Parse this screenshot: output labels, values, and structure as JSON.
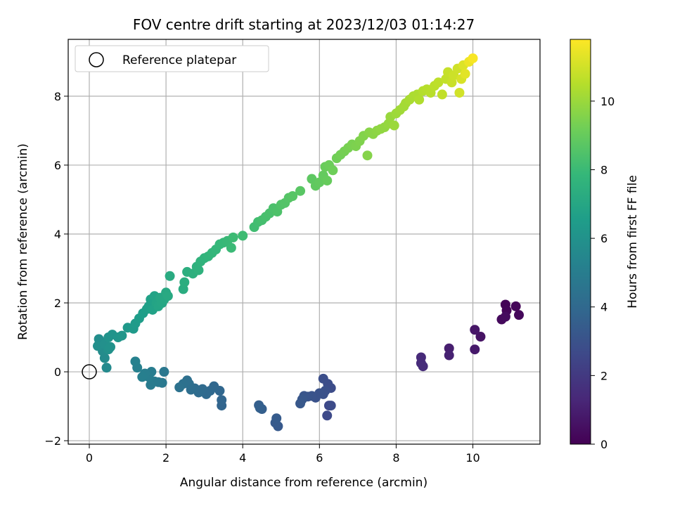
{
  "chart_data": {
    "type": "scatter",
    "title": "FOV centre drift starting at 2023/12/03 01:14:27",
    "xlabel": "Angular distance from reference (arcmin)",
    "ylabel": "Rotation from reference (arcmin)",
    "xlim": [
      -0.55,
      11.75
    ],
    "ylim": [
      -2.1,
      9.65
    ],
    "xticks": [
      0,
      2,
      4,
      6,
      8,
      10
    ],
    "yticks": [
      -2,
      0,
      2,
      4,
      6,
      8
    ],
    "grid": true,
    "legend": {
      "position": "top-left",
      "entries": [
        "Reference platepar"
      ]
    },
    "reference_point": {
      "x": 0,
      "y": 0,
      "label": "Reference platepar"
    },
    "colorbar": {
      "label": "Hours from first FF file",
      "colormap": "viridis",
      "range": [
        0,
        11.8
      ],
      "ticks": [
        0,
        2,
        4,
        6,
        8,
        10
      ]
    },
    "colormap_stops": [
      "#440154",
      "#482878",
      "#3e4989",
      "#31688e",
      "#26828e",
      "#1f9e89",
      "#35b779",
      "#6ece58",
      "#b5de2b",
      "#fde725"
    ],
    "points": [
      [
        10.85,
        1.95,
        0.1
      ],
      [
        10.88,
        1.78,
        0.15
      ],
      [
        11.2,
        1.65,
        0.25
      ],
      [
        11.12,
        1.9,
        0.2
      ],
      [
        10.75,
        1.52,
        0.3
      ],
      [
        10.85,
        1.6,
        0.35
      ],
      [
        10.2,
        1.02,
        0.6
      ],
      [
        10.05,
        1.22,
        0.7
      ],
      [
        10.05,
        0.65,
        0.8
      ],
      [
        9.38,
        0.68,
        1.0
      ],
      [
        9.38,
        0.48,
        1.1
      ],
      [
        8.65,
        0.42,
        1.4
      ],
      [
        8.65,
        0.25,
        1.45
      ],
      [
        8.7,
        0.16,
        1.5
      ],
      [
        6.25,
        -0.98,
        2.6
      ],
      [
        6.2,
        -1.27,
        2.65
      ],
      [
        6.3,
        -0.98,
        2.7
      ],
      [
        6.3,
        -0.47,
        2.75
      ],
      [
        6.22,
        -0.35,
        2.8
      ],
      [
        6.1,
        -0.2,
        2.85
      ],
      [
        6.15,
        -0.55,
        2.9
      ],
      [
        6.1,
        -0.65,
        2.95
      ],
      [
        6.0,
        -0.62,
        3.0
      ],
      [
        5.9,
        -0.75,
        3.0
      ],
      [
        5.8,
        -0.7,
        3.05
      ],
      [
        5.7,
        -0.72,
        3.1
      ],
      [
        5.6,
        -0.7,
        3.15
      ],
      [
        5.55,
        -0.8,
        3.2
      ],
      [
        5.5,
        -0.92,
        3.25
      ],
      [
        4.92,
        -1.58,
        3.3
      ],
      [
        4.85,
        -1.48,
        3.35
      ],
      [
        4.88,
        -1.35,
        3.4
      ],
      [
        4.5,
        -1.08,
        3.5
      ],
      [
        4.42,
        -0.97,
        3.55
      ],
      [
        4.45,
        -1.05,
        3.6
      ],
      [
        3.45,
        -0.98,
        3.8
      ],
      [
        3.45,
        -0.82,
        3.85
      ],
      [
        3.4,
        -0.55,
        3.9
      ],
      [
        3.25,
        -0.42,
        3.95
      ],
      [
        3.15,
        -0.55,
        4.0
      ],
      [
        3.05,
        -0.65,
        4.05
      ],
      [
        2.95,
        -0.5,
        4.1
      ],
      [
        2.85,
        -0.6,
        4.15
      ],
      [
        2.75,
        -0.48,
        4.2
      ],
      [
        2.65,
        -0.52,
        4.25
      ],
      [
        2.6,
        -0.35,
        4.3
      ],
      [
        2.55,
        -0.25,
        4.35
      ],
      [
        2.45,
        -0.35,
        4.4
      ],
      [
        2.35,
        -0.45,
        4.45
      ],
      [
        1.95,
        0.0,
        4.7
      ],
      [
        1.9,
        -0.32,
        4.75
      ],
      [
        1.8,
        -0.3,
        4.8
      ],
      [
        1.7,
        -0.28,
        4.85
      ],
      [
        1.6,
        -0.38,
        4.9
      ],
      [
        1.62,
        0.0,
        4.95
      ],
      [
        1.55,
        -0.15,
        5.0
      ],
      [
        1.45,
        -0.05,
        5.05
      ],
      [
        1.38,
        -0.15,
        5.1
      ],
      [
        1.25,
        0.12,
        5.15
      ],
      [
        1.2,
        0.3,
        5.2
      ],
      [
        0.45,
        0.12,
        5.6
      ],
      [
        0.4,
        0.4,
        5.65
      ],
      [
        0.35,
        0.6,
        5.7
      ],
      [
        0.3,
        0.85,
        5.75
      ],
      [
        0.25,
        0.95,
        5.8
      ],
      [
        0.22,
        0.75,
        5.85
      ],
      [
        0.4,
        0.8,
        5.9
      ],
      [
        0.5,
        0.65,
        5.95
      ],
      [
        0.55,
        0.72,
        6.0
      ],
      [
        0.5,
        1.0,
        6.05
      ],
      [
        0.6,
        1.08,
        6.1
      ],
      [
        0.75,
        1.0,
        6.15
      ],
      [
        0.85,
        1.05,
        6.2
      ],
      [
        1.0,
        1.28,
        6.3
      ],
      [
        1.15,
        1.25,
        6.35
      ],
      [
        1.2,
        1.4,
        6.4
      ],
      [
        1.3,
        1.55,
        6.5
      ],
      [
        1.4,
        1.7,
        6.55
      ],
      [
        1.5,
        1.82,
        6.6
      ],
      [
        1.55,
        1.9,
        6.65
      ],
      [
        1.6,
        2.1,
        6.7
      ],
      [
        1.65,
        1.8,
        6.75
      ],
      [
        1.7,
        2.2,
        6.8
      ],
      [
        1.75,
        2.0,
        6.85
      ],
      [
        1.8,
        1.9,
        6.9
      ],
      [
        1.85,
        2.15,
        6.95
      ],
      [
        1.9,
        2.0,
        7.0
      ],
      [
        1.95,
        2.1,
        7.05
      ],
      [
        2.0,
        2.3,
        7.1
      ],
      [
        2.05,
        2.2,
        7.15
      ],
      [
        2.1,
        2.78,
        7.2
      ],
      [
        2.45,
        2.4,
        7.3
      ],
      [
        2.48,
        2.6,
        7.35
      ],
      [
        2.55,
        2.9,
        7.4
      ],
      [
        2.7,
        2.85,
        7.45
      ],
      [
        2.8,
        3.05,
        7.5
      ],
      [
        2.85,
        2.95,
        7.55
      ],
      [
        2.9,
        3.2,
        7.6
      ],
      [
        3.0,
        3.3,
        7.65
      ],
      [
        3.1,
        3.35,
        7.7
      ],
      [
        3.2,
        3.45,
        7.75
      ],
      [
        3.3,
        3.55,
        7.8
      ],
      [
        3.4,
        3.7,
        7.85
      ],
      [
        3.5,
        3.75,
        7.9
      ],
      [
        3.6,
        3.8,
        7.95
      ],
      [
        3.7,
        3.6,
        8.0
      ],
      [
        3.75,
        3.9,
        8.05
      ],
      [
        4.0,
        3.95,
        8.1
      ],
      [
        4.3,
        4.2,
        8.15
      ],
      [
        4.4,
        4.35,
        8.2
      ],
      [
        4.5,
        4.4,
        8.25
      ],
      [
        4.6,
        4.5,
        8.3
      ],
      [
        4.7,
        4.6,
        8.35
      ],
      [
        4.8,
        4.75,
        8.4
      ],
      [
        4.9,
        4.65,
        8.45
      ],
      [
        5.0,
        4.85,
        8.5
      ],
      [
        5.1,
        4.9,
        8.55
      ],
      [
        5.2,
        5.05,
        8.6
      ],
      [
        5.3,
        5.1,
        8.65
      ],
      [
        5.5,
        5.25,
        8.7
      ],
      [
        5.8,
        5.6,
        8.8
      ],
      [
        5.9,
        5.4,
        8.85
      ],
      [
        6.0,
        5.5,
        8.9
      ],
      [
        6.1,
        5.7,
        8.95
      ],
      [
        6.2,
        5.55,
        9.0
      ],
      [
        6.15,
        5.95,
        9.05
      ],
      [
        6.25,
        6.0,
        9.1
      ],
      [
        6.35,
        5.85,
        9.15
      ],
      [
        6.45,
        6.2,
        9.2
      ],
      [
        6.55,
        6.3,
        9.25
      ],
      [
        6.65,
        6.4,
        9.3
      ],
      [
        6.75,
        6.5,
        9.35
      ],
      [
        6.85,
        6.6,
        9.4
      ],
      [
        6.95,
        6.55,
        9.45
      ],
      [
        7.05,
        6.7,
        9.5
      ],
      [
        7.15,
        6.85,
        9.55
      ],
      [
        7.25,
        6.28,
        9.6
      ],
      [
        7.3,
        6.95,
        9.65
      ],
      [
        7.4,
        6.9,
        9.7
      ],
      [
        7.5,
        7.0,
        9.75
      ],
      [
        7.6,
        7.05,
        9.8
      ],
      [
        7.7,
        7.1,
        9.85
      ],
      [
        7.8,
        7.2,
        9.9
      ],
      [
        7.85,
        7.4,
        9.95
      ],
      [
        7.95,
        7.15,
        10.0
      ],
      [
        8.0,
        7.5,
        10.05
      ],
      [
        8.1,
        7.6,
        10.1
      ],
      [
        8.2,
        7.7,
        10.15
      ],
      [
        8.25,
        7.8,
        10.2
      ],
      [
        8.35,
        7.9,
        10.25
      ],
      [
        8.45,
        8.0,
        10.3
      ],
      [
        8.55,
        8.05,
        10.35
      ],
      [
        8.6,
        7.9,
        10.4
      ],
      [
        8.7,
        8.15,
        10.45
      ],
      [
        8.8,
        8.2,
        10.5
      ],
      [
        8.9,
        8.1,
        10.55
      ],
      [
        9.0,
        8.3,
        10.6
      ],
      [
        9.1,
        8.4,
        10.65
      ],
      [
        9.2,
        8.05,
        10.7
      ],
      [
        9.3,
        8.5,
        10.75
      ],
      [
        9.35,
        8.7,
        10.8
      ],
      [
        9.45,
        8.4,
        10.85
      ],
      [
        9.5,
        8.6,
        10.9
      ],
      [
        9.6,
        8.8,
        10.95
      ],
      [
        9.65,
        8.1,
        11.0
      ],
      [
        9.7,
        8.5,
        11.1
      ],
      [
        9.75,
        8.9,
        11.2
      ],
      [
        9.8,
        8.65,
        11.3
      ],
      [
        9.9,
        9.0,
        11.5
      ],
      [
        10.0,
        9.1,
        11.7
      ]
    ]
  }
}
